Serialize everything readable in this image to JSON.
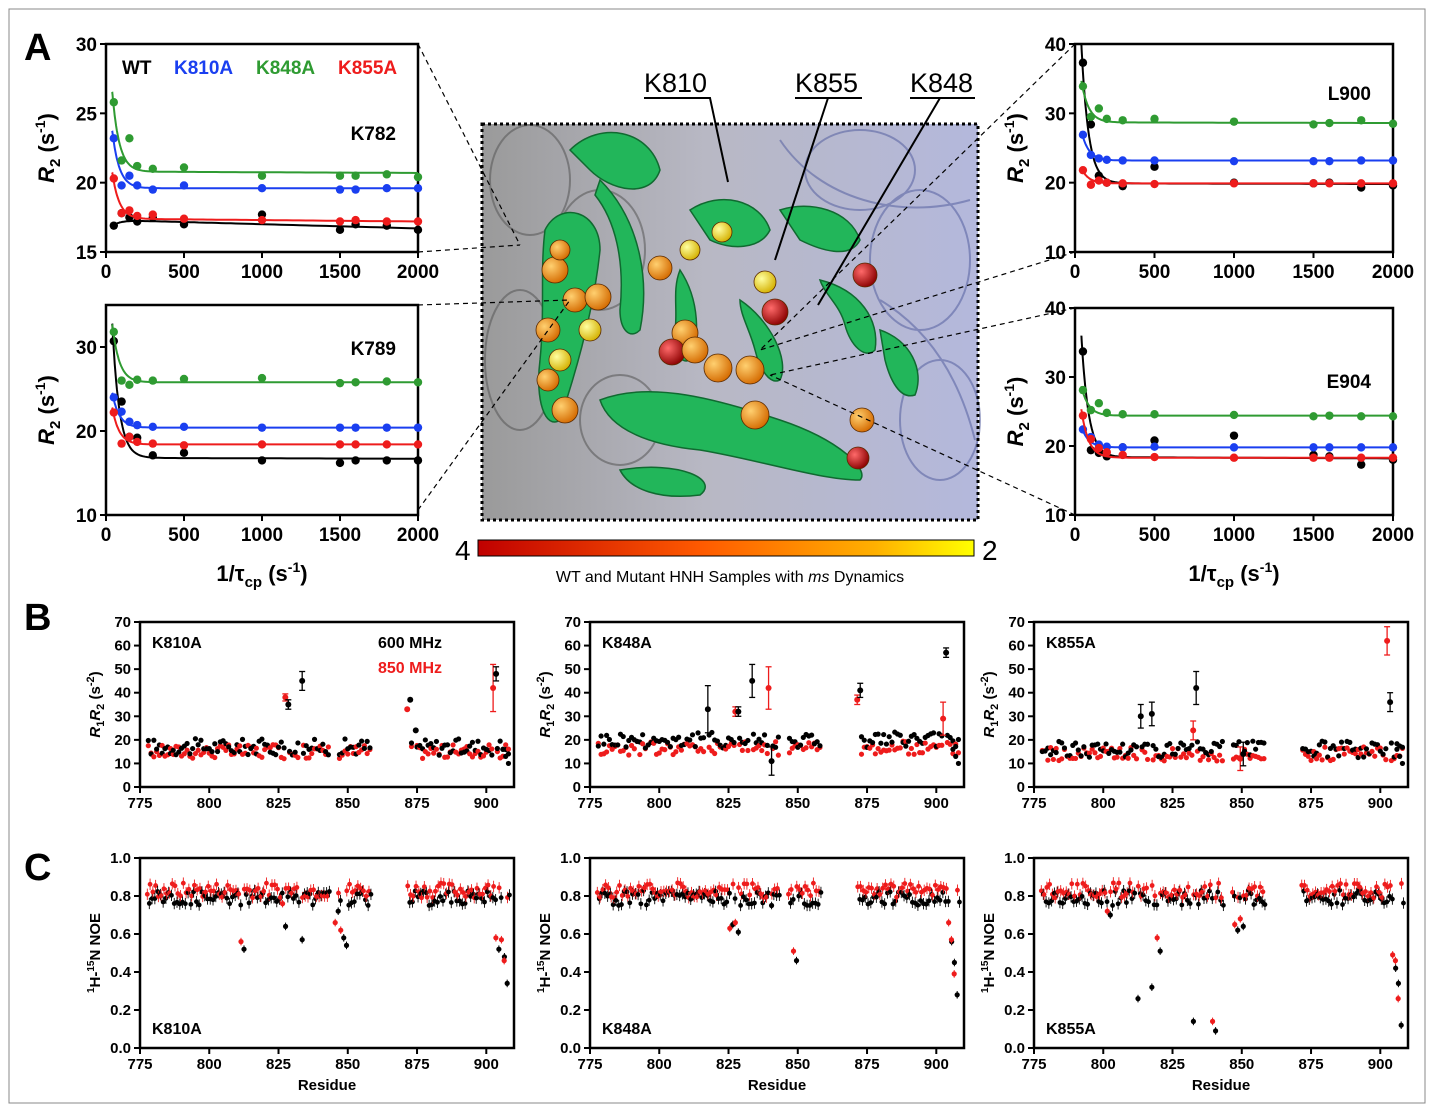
{
  "panel_labels": {
    "a": "A",
    "b": "B",
    "c": "C"
  },
  "legend_A": [
    {
      "name": "WT",
      "color": "#000000"
    },
    {
      "name": "K810A",
      "color": "#1a3ff0"
    },
    {
      "name": "K848A",
      "color": "#2f9b32"
    },
    {
      "name": "K855A",
      "color": "#ee1c1c"
    }
  ],
  "structure": {
    "labels": [
      "K810",
      "K855",
      "K848"
    ],
    "colorbar_max": "4",
    "colorbar_min": "2",
    "caption_parts": [
      "WT and Mutant HNH Samples with ",
      "ms",
      " Dynamics"
    ]
  },
  "axis_text": {
    "r2_label": "R",
    "r2_sub": "2",
    "r2_units": " (s",
    "r2_units_exp": "-1",
    "r2_units_close": ")",
    "tcp_label": "1/τ",
    "tcp_sub": "cp",
    "tcp_units": " (s",
    "tcp_units_exp": "-1",
    "tcp_units_close": ")",
    "r1r2_label_parts": [
      "R",
      "1",
      "R",
      "2",
      " (s",
      "-2",
      ")"
    ],
    "noe_label_parts": [
      "1",
      "H-",
      "15",
      "N NOE"
    ],
    "residue": "Residue"
  },
  "field_legend": [
    {
      "name": "600 MHz",
      "color": "#000000"
    },
    {
      "name": "850 MHz",
      "color": "#ee1c1c"
    }
  ],
  "chart_data": [
    {
      "id": "A_K782",
      "type": "scatter",
      "residue": "K782",
      "xlim": [
        0,
        2000
      ],
      "ylim": [
        15,
        30
      ],
      "xticks": [
        0,
        500,
        1000,
        1500,
        2000
      ],
      "yticks": [
        15,
        20,
        25,
        30
      ],
      "series": [
        {
          "name": "WT",
          "color": "#000000",
          "x": [
            50,
            100,
            150,
            200,
            300,
            500,
            1000,
            1500,
            1600,
            1800,
            2000
          ],
          "y": [
            16.9,
            17.8,
            17.5,
            17.2,
            17.5,
            17.0,
            17.7,
            16.6,
            17.0,
            16.9,
            16.6
          ],
          "fit": [
            17.3,
            16.7
          ]
        },
        {
          "name": "K810A",
          "color": "#1a3ff0",
          "x": [
            50,
            100,
            150,
            200,
            300,
            500,
            1000,
            1500,
            1600,
            1800,
            2000
          ],
          "y": [
            23.2,
            19.8,
            20.5,
            19.8,
            19.5,
            19.8,
            19.6,
            19.5,
            19.5,
            19.6,
            19.6
          ],
          "fit": [
            19.6,
            19.6
          ]
        },
        {
          "name": "K848A",
          "color": "#2f9b32",
          "x": [
            50,
            100,
            150,
            200,
            300,
            500,
            1000,
            1500,
            1600,
            1800,
            2000
          ],
          "y": [
            25.8,
            21.6,
            23.2,
            21.2,
            21.0,
            21.1,
            20.5,
            20.5,
            20.5,
            20.6,
            20.4
          ],
          "fit": [
            20.8,
            20.7
          ]
        },
        {
          "name": "K855A",
          "color": "#ee1c1c",
          "x": [
            50,
            100,
            150,
            200,
            300,
            500,
            1000,
            1500,
            1600,
            1800,
            2000
          ],
          "y": [
            20.3,
            17.8,
            18.0,
            17.6,
            17.7,
            17.4,
            17.3,
            17.2,
            17.3,
            17.2,
            17.2
          ],
          "fit": [
            17.4,
            17.2
          ]
        }
      ]
    },
    {
      "id": "A_K789",
      "type": "scatter",
      "residue": "K789",
      "xlim": [
        0,
        2000
      ],
      "ylim": [
        10,
        35
      ],
      "xticks": [
        0,
        500,
        1000,
        1500,
        2000
      ],
      "yticks": [
        10,
        20,
        30
      ],
      "series": [
        {
          "name": "WT",
          "color": "#000000",
          "x": [
            50,
            100,
            150,
            200,
            300,
            500,
            1000,
            1500,
            1600,
            1800,
            2000
          ],
          "y": [
            30.7,
            23.5,
            19.3,
            19.2,
            17.1,
            17.4,
            16.5,
            16.2,
            16.5,
            16.5,
            16.5
          ],
          "fit": [
            16.8,
            16.7
          ]
        },
        {
          "name": "K810A",
          "color": "#1a3ff0",
          "x": [
            50,
            100,
            150,
            200,
            300,
            500,
            1000,
            1500,
            1600,
            1800,
            2000
          ],
          "y": [
            24.0,
            22.3,
            21.1,
            20.7,
            20.5,
            20.5,
            20.4,
            20.4,
            20.4,
            20.4,
            20.4
          ],
          "fit": [
            20.4,
            20.4
          ]
        },
        {
          "name": "K848A",
          "color": "#2f9b32",
          "x": [
            50,
            100,
            150,
            200,
            300,
            500,
            1000,
            1500,
            1600,
            1800,
            2000
          ],
          "y": [
            31.8,
            26.0,
            25.5,
            26.1,
            26.0,
            26.2,
            26.3,
            25.7,
            25.8,
            25.9,
            25.8
          ],
          "fit": [
            25.8,
            25.8
          ]
        },
        {
          "name": "K855A",
          "color": "#ee1c1c",
          "x": [
            50,
            100,
            150,
            200,
            300,
            500,
            1000,
            1500,
            1600,
            1800,
            2000
          ],
          "y": [
            22.2,
            18.5,
            19.3,
            18.7,
            18.5,
            18.3,
            18.4,
            18.4,
            18.4,
            18.4,
            18.4
          ],
          "fit": [
            18.4,
            18.4
          ]
        }
      ]
    },
    {
      "id": "A_L900",
      "type": "scatter",
      "residue": "L900",
      "xlim": [
        0,
        2000
      ],
      "ylim": [
        10,
        40
      ],
      "xticks": [
        0,
        500,
        1000,
        1500,
        2000
      ],
      "yticks": [
        10,
        20,
        30,
        40
      ],
      "series": [
        {
          "name": "WT",
          "color": "#000000",
          "x": [
            50,
            100,
            150,
            200,
            300,
            500,
            1000,
            1500,
            1600,
            1800,
            2000
          ],
          "y": [
            37.3,
            28.4,
            21.0,
            20.0,
            19.5,
            22.3,
            20.0,
            19.9,
            20.0,
            19.3,
            19.6
          ],
          "fit": [
            19.9,
            19.8
          ]
        },
        {
          "name": "K810A",
          "color": "#1a3ff0",
          "x": [
            50,
            100,
            150,
            200,
            300,
            500,
            1000,
            1500,
            1600,
            1800,
            2000
          ],
          "y": [
            26.9,
            24.0,
            23.5,
            23.3,
            23.2,
            23.2,
            23.1,
            23.1,
            23.1,
            23.2,
            23.2
          ],
          "fit": [
            23.2,
            23.2
          ]
        },
        {
          "name": "K848A",
          "color": "#2f9b32",
          "x": [
            50,
            100,
            150,
            200,
            300,
            500,
            1000,
            1500,
            1600,
            1800,
            2000
          ],
          "y": [
            33.9,
            29.5,
            30.7,
            29.2,
            29.0,
            29.2,
            28.8,
            28.4,
            28.6,
            29.0,
            28.5
          ],
          "fit": [
            28.7,
            28.6
          ]
        },
        {
          "name": "K855A",
          "color": "#ee1c1c",
          "x": [
            50,
            100,
            150,
            200,
            300,
            500,
            1000,
            1500,
            1600,
            1800,
            2000
          ],
          "y": [
            21.8,
            19.7,
            20.3,
            20.0,
            19.9,
            19.8,
            19.9,
            19.9,
            19.9,
            19.9,
            19.9
          ],
          "fit": [
            19.9,
            19.9
          ]
        }
      ]
    },
    {
      "id": "A_E904",
      "type": "scatter",
      "residue": "E904",
      "xlim": [
        0,
        2000
      ],
      "ylim": [
        10,
        40
      ],
      "xticks": [
        0,
        500,
        1000,
        1500,
        2000
      ],
      "yticks": [
        10,
        20,
        30,
        40
      ],
      "series": [
        {
          "name": "WT",
          "color": "#000000",
          "x": [
            50,
            100,
            150,
            200,
            300,
            500,
            1000,
            1500,
            1600,
            1800,
            2000
          ],
          "y": [
            33.7,
            19.4,
            19.0,
            18.5,
            19.8,
            20.8,
            21.5,
            18.7,
            18.5,
            17.3,
            18.0
          ],
          "fit": [
            18.4,
            18.2
          ]
        },
        {
          "name": "K810A",
          "color": "#1a3ff0",
          "x": [
            50,
            100,
            150,
            200,
            300,
            500,
            1000,
            1500,
            1600,
            1800,
            2000
          ],
          "y": [
            22.4,
            21.3,
            20.2,
            19.9,
            19.8,
            19.9,
            19.8,
            19.8,
            19.8,
            19.8,
            19.8
          ],
          "fit": [
            19.8,
            19.8
          ]
        },
        {
          "name": "K848A",
          "color": "#2f9b32",
          "x": [
            50,
            100,
            150,
            200,
            300,
            500,
            1000,
            1500,
            1600,
            1800,
            2000
          ],
          "y": [
            28.1,
            25.2,
            26.2,
            24.8,
            24.6,
            24.6,
            24.5,
            24.3,
            24.4,
            24.3,
            24.3
          ],
          "fit": [
            24.4,
            24.4
          ]
        },
        {
          "name": "K855A",
          "color": "#ee1c1c",
          "x": [
            50,
            100,
            150,
            200,
            300,
            500,
            1000,
            1500,
            1600,
            1800,
            2000
          ],
          "y": [
            24.4,
            21.0,
            19.7,
            19.1,
            18.7,
            18.4,
            18.3,
            18.3,
            18.3,
            18.3,
            18.3
          ],
          "fit": [
            18.3,
            18.3
          ]
        }
      ]
    },
    {
      "id": "B_K810A",
      "type": "scatter",
      "mutant": "K810A",
      "xlim": [
        775,
        910
      ],
      "ylim": [
        0,
        70
      ],
      "xticks": [
        775,
        800,
        825,
        850,
        875,
        900
      ],
      "yticks": [
        0,
        10,
        20,
        30,
        40,
        50,
        60,
        70
      ],
      "highlights": [
        {
          "x": 828,
          "y600": 35,
          "y850": 38,
          "e600": 2,
          "e850": 1.5
        },
        {
          "x": 833,
          "y600": 45,
          "e600": 4
        },
        {
          "x": 872,
          "y600": 37,
          "y850": 33
        },
        {
          "x": 874,
          "y600": 24
        },
        {
          "x": 903,
          "y600": 48,
          "y850": 42,
          "e600": 3,
          "e850": 10
        }
      ]
    },
    {
      "id": "B_K848A",
      "type": "scatter",
      "mutant": "K848A",
      "xlim": [
        775,
        910
      ],
      "ylim": [
        0,
        70
      ],
      "xticks": [
        775,
        800,
        825,
        850,
        875,
        900
      ],
      "yticks": [
        0,
        10,
        20,
        30,
        40,
        50,
        60,
        70
      ],
      "highlights": [
        {
          "x": 817,
          "y600": 33,
          "e600": 10
        },
        {
          "x": 828,
          "y600": 32,
          "y850": 32,
          "e600": 2,
          "e850": 2
        },
        {
          "x": 833,
          "y600": 45,
          "e600": 7
        },
        {
          "x": 840,
          "y600": 11,
          "y850": 42,
          "e600": 6,
          "e850": 9
        },
        {
          "x": 872,
          "y600": 41,
          "y850": 37,
          "e600": 3,
          "e850": 2
        },
        {
          "x": 903,
          "y600": 57,
          "y850": 29,
          "e600": 2,
          "e850": 7
        }
      ]
    },
    {
      "id": "B_K855A",
      "type": "scatter",
      "mutant": "K855A",
      "xlim": [
        775,
        910
      ],
      "ylim": [
        0,
        70
      ],
      "xticks": [
        775,
        800,
        825,
        850,
        875,
        900
      ],
      "yticks": [
        0,
        10,
        20,
        30,
        40,
        50,
        60,
        70
      ],
      "highlights": [
        {
          "x": 813,
          "y600": 30,
          "e600": 5
        },
        {
          "x": 817,
          "y600": 31,
          "e600": 5
        },
        {
          "x": 833,
          "y600": 42,
          "y850": 24,
          "e600": 7,
          "e850": 4
        },
        {
          "x": 850,
          "y600": 14,
          "y850": 12,
          "e600": 5,
          "e850": 5
        },
        {
          "x": 903,
          "y600": 36,
          "y850": 62,
          "e600": 4,
          "e850": 6
        }
      ]
    },
    {
      "id": "C_K810A",
      "type": "scatter",
      "mutant": "K810A",
      "xlim": [
        775,
        910
      ],
      "ylim": [
        0,
        1
      ],
      "xticks": [
        775,
        800,
        825,
        850,
        875,
        900
      ],
      "yticks": [
        0.0,
        0.2,
        0.4,
        0.6,
        0.8,
        1.0
      ],
      "dips": [
        {
          "x": 812,
          "y600": 0.52,
          "y850": 0.56
        },
        {
          "x": 827,
          "y600": 0.64,
          "y850": 0.76
        },
        {
          "x": 833,
          "y600": 0.57
        },
        {
          "x": 846,
          "y600": 0.72,
          "y850": 0.66
        },
        {
          "x": 848,
          "y600": 0.58,
          "y850": 0.62
        },
        {
          "x": 849,
          "y600": 0.54
        },
        {
          "x": 904,
          "y600": 0.52,
          "y850": 0.58
        },
        {
          "x": 906,
          "y600": 0.48,
          "y850": 0.57
        },
        {
          "x": 907,
          "y600": 0.34,
          "y850": 0.46
        }
      ]
    },
    {
      "id": "C_K848A",
      "type": "scatter",
      "mutant": "K848A",
      "xlim": [
        775,
        910
      ],
      "ylim": [
        0,
        1
      ],
      "xticks": [
        775,
        800,
        825,
        850,
        875,
        900
      ],
      "yticks": [
        0.0,
        0.2,
        0.4,
        0.6,
        0.8,
        1.0
      ],
      "dips": [
        {
          "x": 826,
          "y600": 0.65,
          "y850": 0.63
        },
        {
          "x": 828,
          "y600": 0.61,
          "y850": 0.66
        },
        {
          "x": 840,
          "y600": 0.75
        },
        {
          "x": 849,
          "y600": 0.46,
          "y850": 0.51
        },
        {
          "x": 905,
          "y600": 0.56,
          "y850": 0.66
        },
        {
          "x": 906,
          "y600": 0.45,
          "y850": 0.57
        },
        {
          "x": 907,
          "y600": 0.28,
          "y850": 0.39
        }
      ]
    },
    {
      "id": "C_K855A",
      "type": "scatter",
      "mutant": "K855A",
      "xlim": [
        775,
        910
      ],
      "ylim": [
        0,
        1
      ],
      "xticks": [
        775,
        800,
        825,
        850,
        875,
        900
      ],
      "yticks": [
        0.0,
        0.2,
        0.4,
        0.6,
        0.8,
        1.0
      ],
      "dips": [
        {
          "x": 802,
          "y600": 0.7,
          "y850": 0.72
        },
        {
          "x": 812,
          "y600": 0.26
        },
        {
          "x": 817,
          "y600": 0.32
        },
        {
          "x": 820,
          "y600": 0.51,
          "y850": 0.58
        },
        {
          "x": 832,
          "y600": 0.14
        },
        {
          "x": 840,
          "y600": 0.09,
          "y850": 0.14
        },
        {
          "x": 848,
          "y600": 0.62,
          "y850": 0.65
        },
        {
          "x": 850,
          "y600": 0.64,
          "y850": 0.68
        },
        {
          "x": 905,
          "y600": 0.42,
          "y850": 0.49
        },
        {
          "x": 906,
          "y600": 0.34,
          "y850": 0.46
        },
        {
          "x": 907,
          "y600": 0.12,
          "y850": 0.26
        }
      ]
    }
  ]
}
